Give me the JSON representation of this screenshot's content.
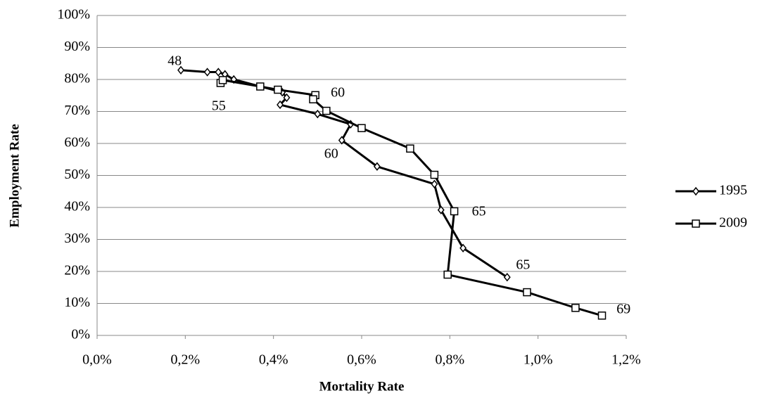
{
  "chart_data": {
    "type": "line",
    "x_label": "Mortality Rate",
    "y_label": "Employment Rate",
    "xlim": [
      0,
      1.2
    ],
    "xticks": [
      {
        "value": 0,
        "label": "0,0%"
      },
      {
        "value": 0.2,
        "label": "0,2%"
      },
      {
        "value": 0.4,
        "label": "0,4%"
      },
      {
        "value": 0.6,
        "label": "0,6%"
      },
      {
        "value": 0.8,
        "label": "0,8%"
      },
      {
        "value": 1.0,
        "label": "1,0%"
      },
      {
        "value": 1.2,
        "label": "1,2%"
      }
    ],
    "ylim": [
      0,
      100
    ],
    "yticks": [
      {
        "value": 0,
        "label": "0%"
      },
      {
        "value": 10,
        "label": "10%"
      },
      {
        "value": 20,
        "label": "20%"
      },
      {
        "value": 30,
        "label": "30%"
      },
      {
        "value": 40,
        "label": "40%"
      },
      {
        "value": 50,
        "label": "50%"
      },
      {
        "value": 60,
        "label": "60%"
      },
      {
        "value": 70,
        "label": "70%"
      },
      {
        "value": 80,
        "label": "80%"
      },
      {
        "value": 90,
        "label": "90%"
      },
      {
        "value": 100,
        "label": "100%"
      }
    ],
    "grid": true,
    "legend": "right",
    "series": [
      {
        "name": "1995",
        "color": "#000000",
        "marker": "diamond",
        "x": [
          0.19,
          0.25,
          0.275,
          0.29,
          0.31,
          0.42,
          0.43,
          0.415,
          0.5,
          0.575,
          0.555,
          0.635,
          0.765,
          0.78,
          0.83,
          0.93
        ],
        "values": [
          82.9,
          82.3,
          82.3,
          81.6,
          80.0,
          76.0,
          74.3,
          72.1,
          69.2,
          66.0,
          61.0,
          52.8,
          47.3,
          39.2,
          27.3,
          18.2
        ]
      },
      {
        "name": "2009",
        "color": "#000000",
        "marker": "square",
        "x": [
          0.28,
          0.285,
          0.37,
          0.41,
          0.495,
          0.49,
          0.52,
          0.6,
          0.71,
          0.765,
          0.81,
          0.795,
          0.975,
          1.085,
          1.145
        ],
        "values": [
          78.9,
          79.8,
          77.8,
          76.8,
          75.1,
          73.8,
          70.2,
          64.8,
          58.4,
          50.2,
          38.8,
          19.0,
          13.5,
          8.6,
          6.2
        ]
      }
    ],
    "annotations": [
      {
        "text": "48",
        "x": 0.16,
        "y": 85.5
      },
      {
        "text": "55",
        "x": 0.26,
        "y": 71.4
      },
      {
        "text": "60",
        "x": 0.53,
        "y": 75.6
      },
      {
        "text": "60",
        "x": 0.515,
        "y": 56.5
      },
      {
        "text": "65",
        "x": 0.85,
        "y": 38.5
      },
      {
        "text": "65",
        "x": 0.95,
        "y": 21.8
      },
      {
        "text": "69",
        "x": 1.178,
        "y": 7.9
      }
    ]
  }
}
